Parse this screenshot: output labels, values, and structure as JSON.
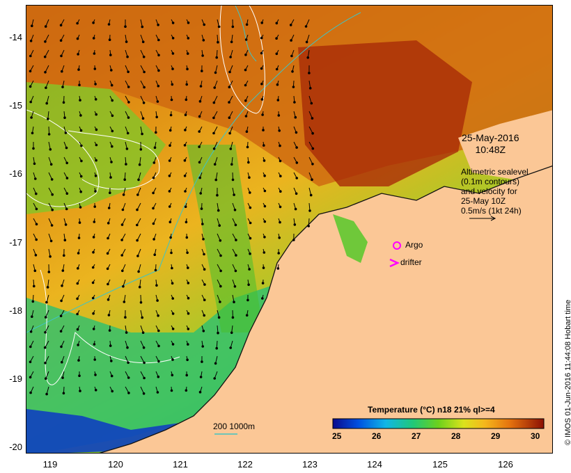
{
  "map": {
    "date": "25-May-2016",
    "time": "10:48Z",
    "altimetry_lines": [
      "Altimetric sealevel",
      "(0.1m contours)",
      "and velocity for",
      "25-May 10Z",
      "0.5m/s (1kt 24h)"
    ],
    "argo_label": "Argo",
    "drifter_label": "drifter",
    "contour_legend": "200  1000m",
    "colorbar_title": "Temperature (°C) n18 21% ql>=4",
    "colorbar_ticks": [
      "25",
      "26",
      "27",
      "28",
      "29",
      "30"
    ],
    "copyright": "© IMOS 01-Jun-2016 11:44:08 Hobart time",
    "y_axis_labels": [
      "-14",
      "-15",
      "-16",
      "-17",
      "-18",
      "-19",
      "-20"
    ],
    "x_axis_labels": [
      "119",
      "120",
      "121",
      "122",
      "123",
      "124",
      "125",
      "126"
    ],
    "colors": {
      "land": "#fbc796",
      "warm": "#c2410a",
      "hot": "#9c1a06",
      "mid": "#e7a019",
      "cool_green": "#4fc22c",
      "cold": "#0030a0",
      "contour_isobath": "#3fc4c4",
      "argo": "#ff00ff",
      "drifter": "#ff00ff"
    }
  }
}
